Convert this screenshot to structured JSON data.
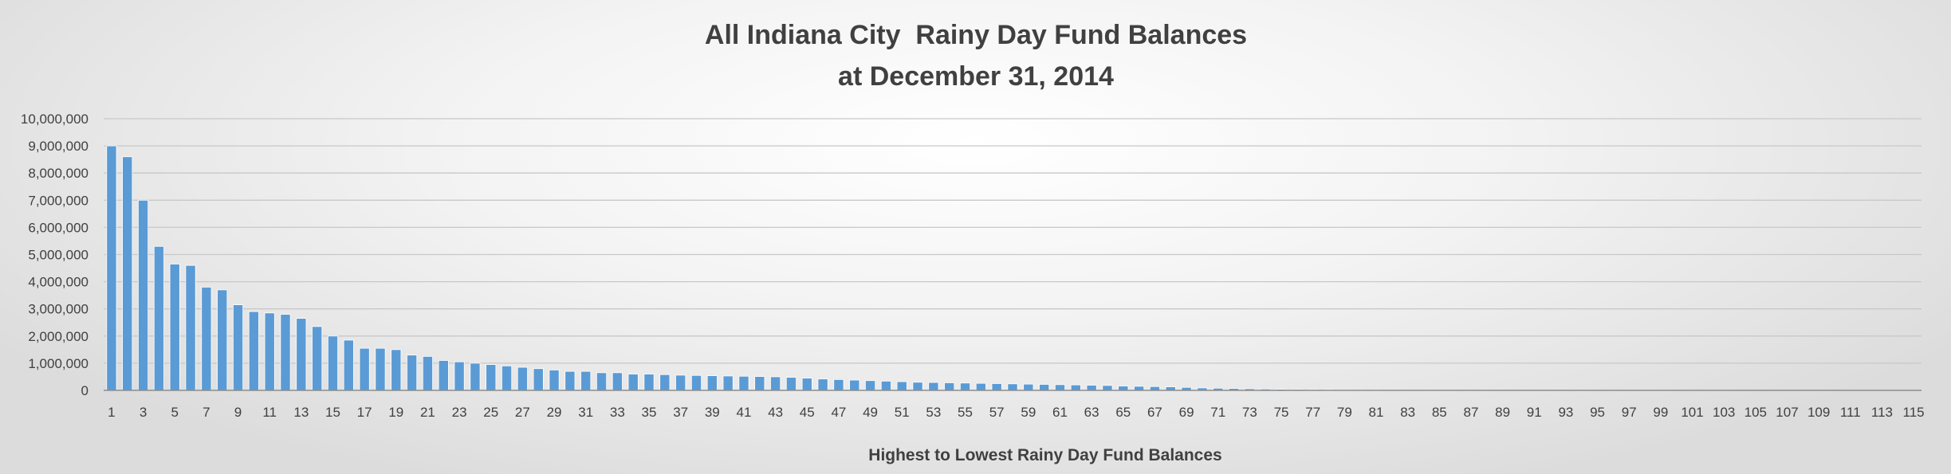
{
  "chart_data": {
    "type": "bar",
    "title": "All Indiana City  Rainy Day Fund Balances",
    "subtitle": "at December 31, 2014",
    "xlabel": "Highest to Lowest Rainy Day Fund Balances",
    "ylabel": "",
    "ylim": [
      0,
      10000000
    ],
    "yticks": [
      0,
      1000000,
      2000000,
      3000000,
      4000000,
      5000000,
      6000000,
      7000000,
      8000000,
      9000000,
      10000000
    ],
    "ytick_labels": [
      "0",
      "1,000,000",
      "2,000,000",
      "3,000,000",
      "4,000,000",
      "5,000,000",
      "6,000,000",
      "7,000,000",
      "8,000,000",
      "9,000,000",
      "10,000,000"
    ],
    "grid": true,
    "legend": "none",
    "bar_color": "#5b9bd5",
    "categories": [
      1,
      2,
      3,
      4,
      5,
      6,
      7,
      8,
      9,
      10,
      11,
      12,
      13,
      14,
      15,
      16,
      17,
      18,
      19,
      20,
      21,
      22,
      23,
      24,
      25,
      26,
      27,
      28,
      29,
      30,
      31,
      32,
      33,
      34,
      35,
      36,
      37,
      38,
      39,
      40,
      41,
      42,
      43,
      44,
      45,
      46,
      47,
      48,
      49,
      50,
      51,
      52,
      53,
      54,
      55,
      56,
      57,
      58,
      59,
      60,
      61,
      62,
      63,
      64,
      65,
      66,
      67,
      68,
      69,
      70,
      71,
      72,
      73,
      74,
      75,
      76,
      77,
      78,
      79,
      80,
      81,
      82,
      83,
      84,
      85,
      86,
      87,
      88,
      89,
      90,
      91,
      92,
      93,
      94,
      95,
      96,
      97,
      98,
      99,
      100,
      101,
      102,
      103,
      104,
      105,
      106,
      107,
      108,
      109,
      110,
      111,
      112,
      113,
      114,
      115
    ],
    "x_tick_labels": [
      "1",
      "3",
      "5",
      "7",
      "9",
      "11",
      "13",
      "15",
      "17",
      "19",
      "21",
      "23",
      "25",
      "27",
      "29",
      "31",
      "33",
      "35",
      "37",
      "39",
      "41",
      "43",
      "45",
      "47",
      "49",
      "51",
      "53",
      "55",
      "57",
      "59",
      "61",
      "63",
      "65",
      "67",
      "69",
      "71",
      "73",
      "75",
      "77",
      "79",
      "81",
      "83",
      "85",
      "87",
      "89",
      "91",
      "93",
      "95",
      "97",
      "99",
      "101",
      "103",
      "105",
      "107",
      "109",
      "111",
      "113",
      "115"
    ],
    "values": [
      9000000,
      8600000,
      7000000,
      5300000,
      4650000,
      4600000,
      3800000,
      3700000,
      3150000,
      2900000,
      2850000,
      2800000,
      2650000,
      2350000,
      2000000,
      1850000,
      1550000,
      1550000,
      1500000,
      1300000,
      1250000,
      1100000,
      1050000,
      1000000,
      950000,
      900000,
      850000,
      800000,
      750000,
      700000,
      700000,
      650000,
      650000,
      600000,
      600000,
      580000,
      560000,
      550000,
      540000,
      530000,
      520000,
      510000,
      500000,
      480000,
      450000,
      420000,
      400000,
      380000,
      360000,
      340000,
      320000,
      300000,
      290000,
      280000,
      270000,
      260000,
      250000,
      240000,
      230000,
      220000,
      210000,
      200000,
      190000,
      180000,
      160000,
      150000,
      140000,
      130000,
      110000,
      90000,
      80000,
      70000,
      60000,
      50000,
      40000,
      35000,
      30000,
      25000,
      20000,
      18000,
      15000,
      12000,
      10000,
      9000,
      8000,
      7000,
      6000,
      5000,
      4500,
      4000,
      3500,
      3000,
      2500,
      2000,
      1800,
      1600,
      1400,
      1200,
      1000,
      900,
      800,
      700,
      600,
      500,
      400,
      300,
      250,
      200,
      150,
      100,
      80,
      60,
      40,
      20,
      10
    ]
  }
}
